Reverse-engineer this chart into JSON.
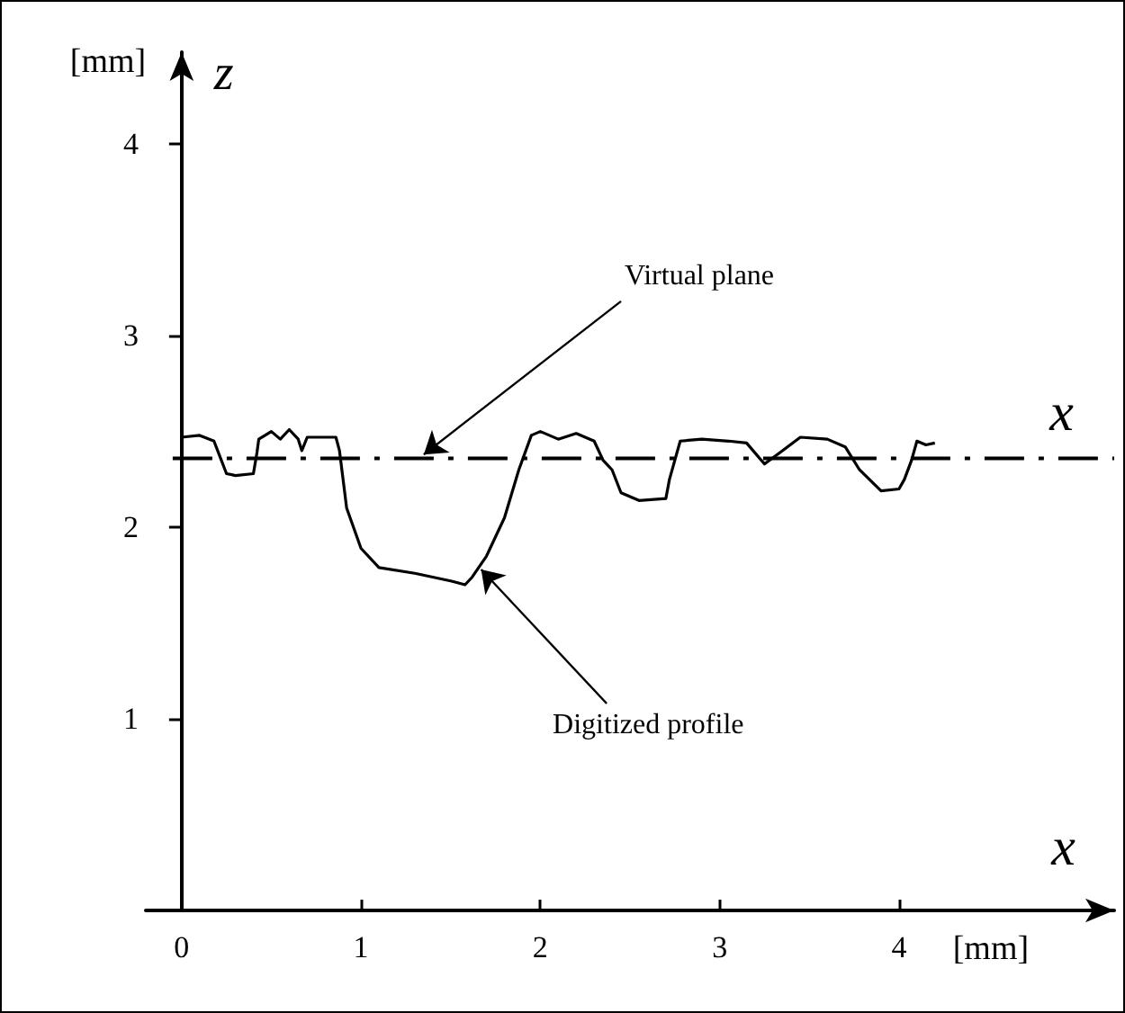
{
  "chart_data": {
    "type": "line",
    "xlabel": "x",
    "ylabel": "z",
    "xlim": [
      -0.2,
      5.2
    ],
    "ylim": [
      0,
      4.48
    ],
    "xticks": [
      0,
      1,
      2,
      3,
      4
    ],
    "yticks": [
      1,
      2,
      3,
      4
    ],
    "grid": false,
    "marker": "none",
    "line_style": "solid",
    "series": [
      {
        "color": "#000000",
        "x": [
          0,
          0.1,
          0.18,
          0.25,
          0.3,
          0.4,
          0.42,
          0.43,
          0.5,
          0.55,
          0.6,
          0.65,
          0.67,
          0.7,
          0.8,
          0.86,
          0.88,
          0.92,
          1.0,
          1.1,
          1.3,
          1.5,
          1.58,
          1.62,
          1.7,
          1.8,
          1.88,
          1.95,
          2.0,
          2.1,
          2.2,
          2.3,
          2.35,
          2.4,
          2.45,
          2.55,
          2.7,
          2.72,
          2.78,
          2.9,
          3.05,
          3.15,
          3.25,
          3.35,
          3.45,
          3.6,
          3.7,
          3.78,
          3.9,
          4.0,
          4.03,
          4.07,
          4.1,
          4.15,
          4.2
        ],
        "values": [
          2.47,
          2.48,
          2.45,
          2.28,
          2.27,
          2.28,
          2.39,
          2.46,
          2.5,
          2.46,
          2.51,
          2.46,
          2.4,
          2.47,
          2.47,
          2.47,
          2.4,
          2.1,
          1.89,
          1.79,
          1.76,
          1.72,
          1.7,
          1.74,
          1.85,
          2.05,
          2.3,
          2.48,
          2.5,
          2.46,
          2.49,
          2.45,
          2.35,
          2.3,
          2.18,
          2.14,
          2.15,
          2.25,
          2.45,
          2.46,
          2.45,
          2.44,
          2.33,
          2.4,
          2.47,
          2.46,
          2.42,
          2.3,
          2.19,
          2.2,
          2.25,
          2.35,
          2.45,
          2.43,
          2.44
        ]
      }
    ],
    "ref_lines": [
      {
        "axis": "y",
        "value": 2.36,
        "label": "Virtual plane",
        "line_style": "dashdot",
        "color": "#000000"
      }
    ],
    "annotations": [
      {
        "text": "Digitized profile",
        "x": 1.67,
        "y": 1.78
      },
      "[mm]",
      "[mm]",
      {
        "text": "x",
        "x": 5.0,
        "y": 2.36
      }
    ]
  }
}
